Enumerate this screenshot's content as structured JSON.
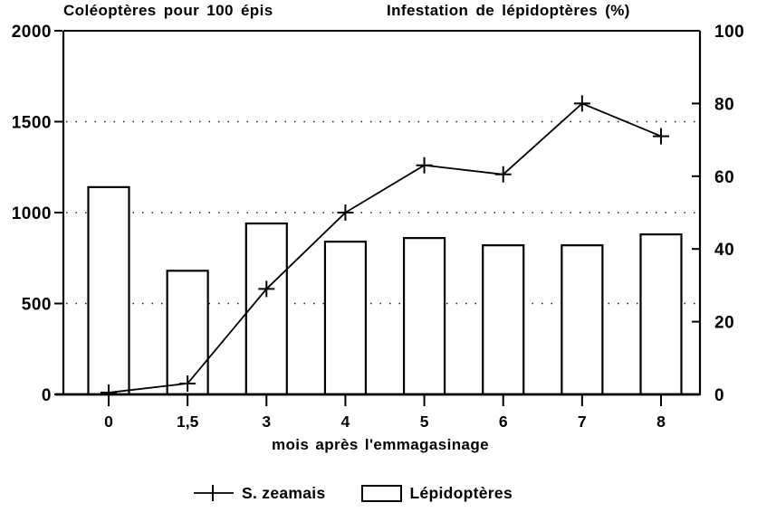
{
  "page": {
    "background": "#ffffff",
    "ink": "#000000"
  },
  "chart_data": {
    "type": "bar+line (dual y-axes, scanned black-and-white figure)",
    "title_left_axis": "Coléoptères pour 100 épis",
    "title_right_axis": "Infestation de lépidoptères (%)",
    "xlabel": "mois après l'emmagasinage",
    "categories": [
      "0",
      "1,5",
      "3",
      "4",
      "5",
      "6",
      "7",
      "8"
    ],
    "series": [
      {
        "name": "S. zeamais",
        "kind": "line",
        "axis": "left",
        "marker": "plus",
        "values": [
          10,
          60,
          580,
          1000,
          1260,
          1210,
          1600,
          1420
        ]
      },
      {
        "name": "Lépidoptères",
        "kind": "bar",
        "axis": "right",
        "fill": "open",
        "values": [
          57,
          34,
          47,
          42,
          43,
          41,
          41,
          44
        ]
      }
    ],
    "left_axis": {
      "range": [
        0,
        2000
      ],
      "ticks": [
        0,
        500,
        1000,
        1500,
        2000
      ]
    },
    "right_axis": {
      "range": [
        0,
        100
      ],
      "ticks": [
        0,
        20,
        40,
        60,
        80,
        100
      ]
    },
    "gridlines": {
      "style": "dotted",
      "at_left_values": [
        500,
        1000,
        1500
      ]
    },
    "legend": {
      "position": "bottom",
      "items": [
        {
          "label": "S. zeamais",
          "symbol": "line-with-plus-marker"
        },
        {
          "label": "Lépidoptères",
          "symbol": "open-rectangle"
        }
      ]
    }
  }
}
